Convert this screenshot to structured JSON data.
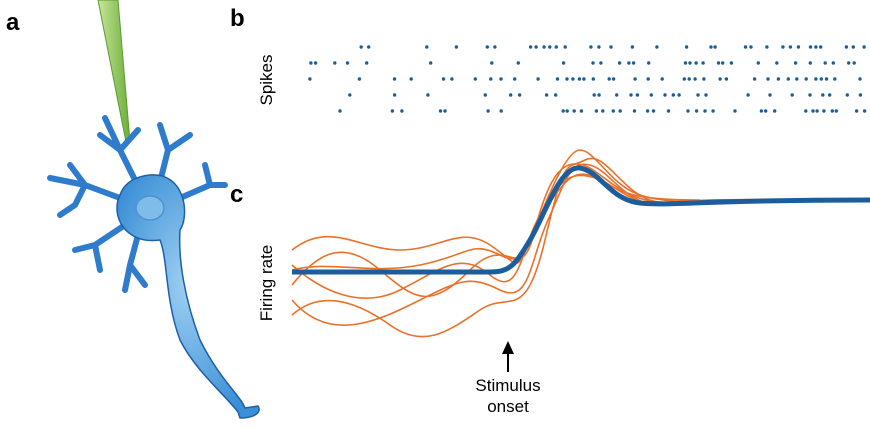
{
  "panels": {
    "a": "a",
    "b": "b",
    "c": "c"
  },
  "raster": {
    "ylabel": "Spikes"
  },
  "rate": {
    "ylabel": "Firing rate",
    "annotation": [
      "Stimulus",
      "onset"
    ]
  }
}
